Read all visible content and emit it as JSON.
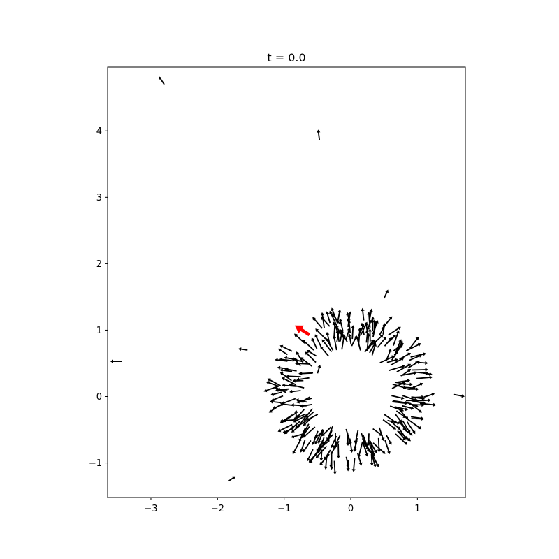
{
  "chart_data": {
    "type": "quiver",
    "title": "t = 0.0",
    "xlabel": "",
    "ylabel": "",
    "xlim": [
      -3.65,
      1.72
    ],
    "ylim": [
      -1.52,
      4.96
    ],
    "x_ticks": [
      -3,
      -2,
      -1,
      0,
      1
    ],
    "y_ticks": [
      -1,
      0,
      1,
      2,
      3,
      4
    ],
    "x_tick_labels": [
      "−3",
      "−2",
      "−1",
      "0",
      "1"
    ],
    "y_tick_labels": [
      "−1",
      "0",
      "1",
      "2",
      "3",
      "4"
    ],
    "grid": false,
    "colors": {
      "arrow": "#000000",
      "highlight": "#ff0000"
    },
    "ring": {
      "center": [
        0.0,
        0.1
      ],
      "inner_radius": 0.7,
      "outer_radius": 1.2,
      "arrow_count": 260,
      "arrow_length": 0.22
    },
    "stray_arrows": [
      {
        "x": -2.8,
        "y": 4.7,
        "u": -0.08,
        "v": 0.12
      },
      {
        "x": -0.47,
        "y": 3.86,
        "u": -0.02,
        "v": 0.16
      },
      {
        "x": 0.5,
        "y": 1.48,
        "u": 0.06,
        "v": 0.13
      },
      {
        "x": -3.43,
        "y": 0.53,
        "u": -0.18,
        "v": 0.0
      },
      {
        "x": -1.55,
        "y": 0.7,
        "u": -0.14,
        "v": 0.02
      },
      {
        "x": 1.55,
        "y": 0.03,
        "u": 0.16,
        "v": -0.03
      },
      {
        "x": -1.83,
        "y": -1.27,
        "u": 0.1,
        "v": 0.07
      },
      {
        "x": -0.82,
        "y": -0.35,
        "u": 0.0,
        "v": 0.15
      },
      {
        "x": -0.5,
        "y": 0.35,
        "u": 0.04,
        "v": 0.13
      }
    ],
    "highlight_arrow": {
      "x": -0.62,
      "y": 0.93,
      "u": -0.22,
      "v": 0.14
    }
  }
}
